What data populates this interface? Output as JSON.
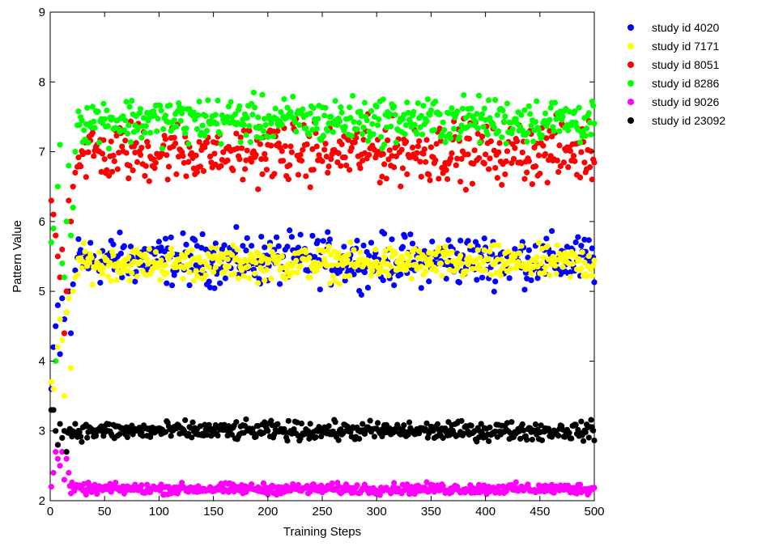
{
  "chart_data": {
    "type": "scatter",
    "title": "",
    "xlabel": "Training Steps",
    "ylabel": "Pattern Value",
    "xlim": [
      0,
      500
    ],
    "ylim": [
      2,
      9
    ],
    "xticks": [
      0,
      50,
      100,
      150,
      200,
      250,
      300,
      350,
      400,
      450,
      500
    ],
    "yticks": [
      2,
      3,
      4,
      5,
      6,
      7,
      8,
      9
    ],
    "legend_position": "outside-right-top",
    "grid": false,
    "series": [
      {
        "name": "study id 4020",
        "color": "#0000ff",
        "early": [
          [
            1,
            3.6
          ],
          [
            3,
            4.2
          ],
          [
            5,
            4.5
          ],
          [
            7,
            4.8
          ],
          [
            9,
            4.1
          ],
          [
            11,
            4.9
          ],
          [
            13,
            4.6
          ],
          [
            15,
            4.7
          ],
          [
            17,
            5.0
          ],
          [
            19,
            4.4
          ],
          [
            21,
            5.1
          ],
          [
            23,
            5.3
          ]
        ],
        "x": [
          25,
          500
        ],
        "center": 5.45,
        "spread": 0.33
      },
      {
        "name": "study id 7171",
        "color": "#ffff00",
        "early": [
          [
            1,
            3.7
          ],
          [
            3,
            3.6
          ],
          [
            5,
            4.0
          ],
          [
            7,
            4.2
          ],
          [
            9,
            4.6
          ],
          [
            11,
            4.3
          ],
          [
            13,
            3.5
          ],
          [
            15,
            4.7
          ],
          [
            17,
            4.9
          ],
          [
            19,
            3.9
          ],
          [
            21,
            5.0
          ],
          [
            23,
            5.2
          ]
        ],
        "x": [
          25,
          500
        ],
        "center": 5.4,
        "spread": 0.22
      },
      {
        "name": "study id 8051",
        "color": "#ff0000",
        "early": [
          [
            1,
            6.3
          ],
          [
            3,
            6.1
          ],
          [
            5,
            5.8
          ],
          [
            7,
            5.5
          ],
          [
            9,
            5.2
          ],
          [
            11,
            5.6
          ],
          [
            13,
            4.4
          ],
          [
            15,
            5.0
          ],
          [
            17,
            6.3
          ],
          [
            19,
            6.0
          ],
          [
            21,
            6.5
          ],
          [
            23,
            6.7
          ]
        ],
        "x": [
          25,
          500
        ],
        "center": 7.0,
        "spread": 0.4
      },
      {
        "name": "study id 8286",
        "color": "#00ff00",
        "early": [
          [
            1,
            5.7
          ],
          [
            3,
            5.9
          ],
          [
            5,
            4.0
          ],
          [
            7,
            6.5
          ],
          [
            9,
            7.1
          ],
          [
            11,
            5.4
          ],
          [
            13,
            5.2
          ],
          [
            15,
            6.0
          ],
          [
            17,
            6.8
          ],
          [
            19,
            5.8
          ],
          [
            21,
            6.2
          ],
          [
            23,
            7.0
          ]
        ],
        "x": [
          25,
          500
        ],
        "center": 7.45,
        "spread": 0.3
      },
      {
        "name": "study id 9026",
        "color": "#ff00ff",
        "early": [
          [
            1,
            2.2
          ],
          [
            3,
            2.4
          ],
          [
            5,
            2.7
          ],
          [
            7,
            2.6
          ],
          [
            9,
            2.5
          ],
          [
            11,
            2.7
          ],
          [
            13,
            2.3
          ],
          [
            15,
            2.6
          ],
          [
            17,
            2.4
          ]
        ],
        "x": [
          18,
          500
        ],
        "center": 2.17,
        "spread": 0.07
      },
      {
        "name": "study id 23092",
        "color": "#000000",
        "early": [
          [
            1,
            3.3
          ],
          [
            3,
            3.3
          ],
          [
            5,
            3.0
          ],
          [
            7,
            2.8
          ],
          [
            9,
            3.1
          ],
          [
            11,
            2.9
          ],
          [
            13,
            3.0
          ],
          [
            15,
            2.7
          ]
        ],
        "x": [
          16,
          500
        ],
        "center": 3.0,
        "spread": 0.12
      }
    ]
  }
}
